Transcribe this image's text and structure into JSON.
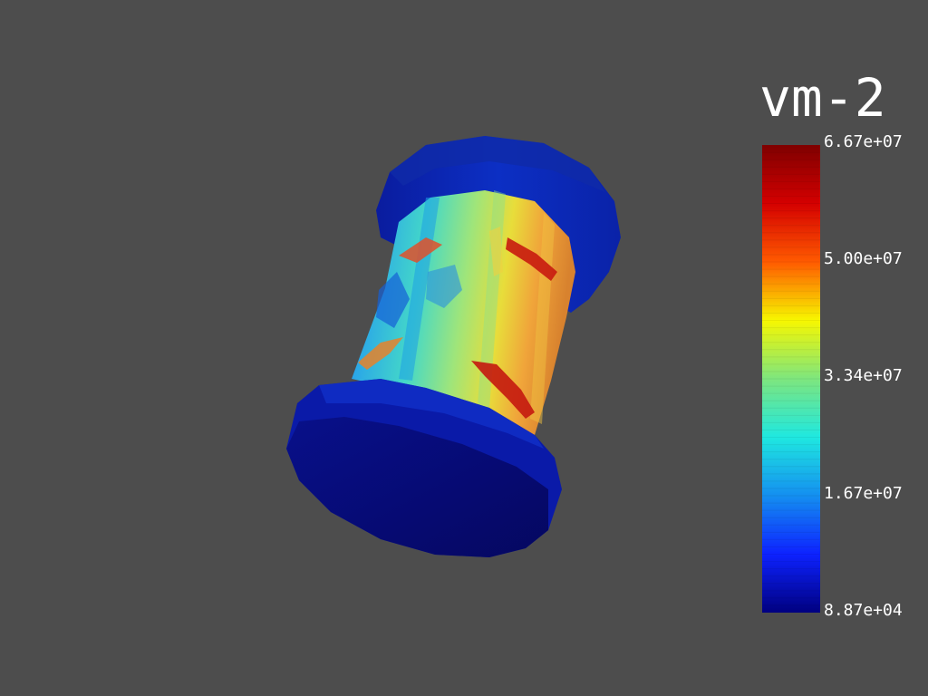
{
  "scalar_bar": {
    "title": "vm-2",
    "ticks": [
      "6.67e+07",
      "5.00e+07",
      "3.34e+07",
      "1.67e+07",
      "8.87e+04"
    ],
    "colors": [
      "#7f0000",
      "#d40000",
      "#ff5a00",
      "#f7f700",
      "#7ee67e",
      "#1fe8e0",
      "#148ff0",
      "#0d22ff",
      "#000080"
    ]
  }
}
